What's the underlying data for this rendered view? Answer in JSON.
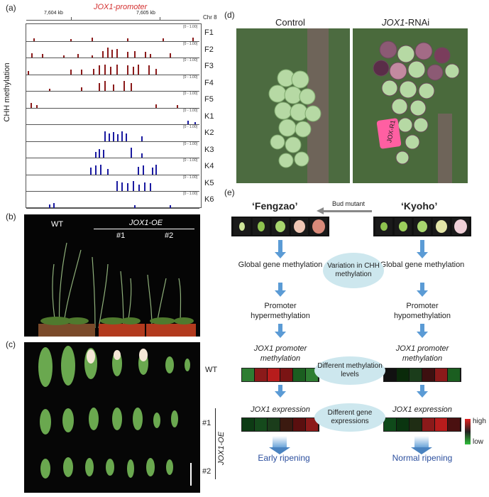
{
  "panel_a": {
    "label": "(a)",
    "coord_left": "7,604 kb",
    "coord_right": "7,605 kb",
    "chrom": "Chr 8",
    "title": "JOX1-promoter",
    "ylabel": "CHH methylation",
    "range_label": "[0 - 1.00]",
    "tracks": [
      "F1",
      "F2",
      "F3",
      "F4",
      "F5",
      "K1",
      "K2",
      "K3",
      "K4",
      "K5",
      "K6"
    ],
    "colors": {
      "F": "#8b1a1a",
      "K": "#1a1aa0"
    }
  },
  "panel_b": {
    "label": "(b)",
    "wt": "WT",
    "oe": "JOX1-OE",
    "line1": "#1",
    "line2": "#2"
  },
  "panel_c": {
    "label": "(c)",
    "wt": "WT",
    "line1": "#1",
    "line2": "#2",
    "oe": "JOX1-OE"
  },
  "panel_d": {
    "label": "(d)",
    "control": "Control",
    "rnai_gene": "JOX1",
    "rnai_suffix": "-RNAi",
    "tag": "JOX-R1"
  },
  "panel_e": {
    "label": "(e)",
    "left_cultivar": "‘Fengzao’",
    "right_cultivar": "‘Kyoho’",
    "bud_mutant": "Bud mutant",
    "left_steps": [
      "Global gene methylation",
      "Promoter hypermethylation",
      "JOX1 promoter methylation",
      "JOX1 expression",
      "Early ripening"
    ],
    "right_steps": [
      "Global gene methylation",
      "Promoter hypomethylation",
      "JOX1 promoter methylation",
      "JOX1 expression",
      "Normal ripening"
    ],
    "middle": [
      "Variation in CHH methylation",
      "Different methylation levels",
      "Different gene expressions"
    ],
    "legend_high": "high",
    "legend_low": "low",
    "heat_left_meth": [
      "#2e7d32",
      "#8b1a1a",
      "#b71c1c",
      "#7a1414",
      "#1b5e20",
      "#2e7d32"
    ],
    "heat_right_meth": [
      "#111111",
      "#0a2a0a",
      "#1b3d1b",
      "#3d1010",
      "#8b1a1a",
      "#1b5e20"
    ],
    "heat_left_exp": [
      "#0d3b14",
      "#154a1c",
      "#1b3d1b",
      "#3b1a10",
      "#5a0f0f",
      "#8b1a1a"
    ],
    "heat_right_exp": [
      "#0f4a1a",
      "#0a3510",
      "#1f2d14",
      "#8b1a1a",
      "#b71c1c",
      "#4a1010"
    ]
  }
}
